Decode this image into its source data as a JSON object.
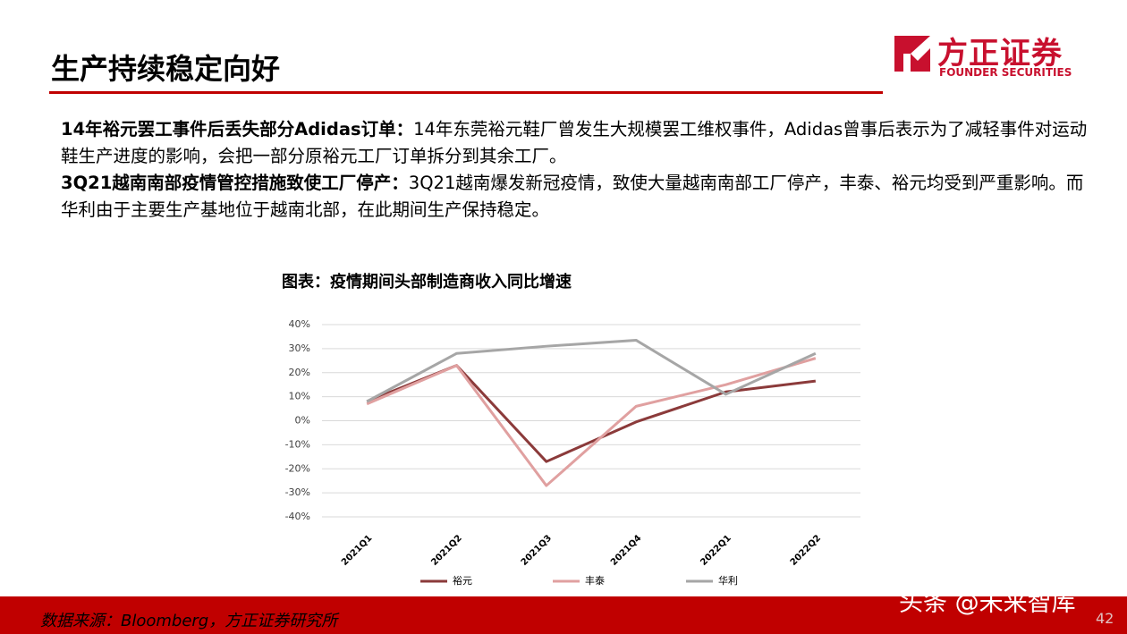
{
  "header": {
    "title": "生产持续稳定向好"
  },
  "logo": {
    "name": "方正证券",
    "subtitle": "FOUNDER SECURITIES"
  },
  "paragraphs": [
    {
      "lead": "14年裕元罢工事件后丢失部分Adidas订单：",
      "text": "14年东莞裕元鞋厂曾发生大规模罢工维权事件，Adidas曾事后表示为了减轻事件对运动鞋生产进度的影响，会把一部分原裕元工厂订单拆分到其余工厂。"
    },
    {
      "lead": "3Q21越南南部疫情管控措施致使工厂停产：",
      "text": "3Q21越南爆发新冠疫情，致使大量越南南部工厂停产，丰泰、裕元均受到严重影响。而华利由于主要生产基地位于越南北部，在此期间生产保持稳定。"
    }
  ],
  "chart_data": {
    "type": "line",
    "title": "图表：疫情期间头部制造商收入同比增速",
    "categories": [
      "2021Q1",
      "2021Q2",
      "2021Q3",
      "2021Q4",
      "2022Q1",
      "2022Q2"
    ],
    "series": [
      {
        "name": "裕元",
        "color": "#8b3a3a",
        "values": [
          8,
          23,
          -17,
          -0.5,
          12,
          16.5
        ]
      },
      {
        "name": "丰泰",
        "color": "#e0a0a0",
        "values": [
          7,
          23,
          -27,
          6,
          15,
          26
        ]
      },
      {
        "name": "华利",
        "color": "#a6a6a6",
        "values": [
          8,
          28,
          31,
          33.5,
          11,
          28
        ]
      }
    ],
    "ylim": [
      -40,
      40
    ],
    "yticks": [
      {
        "value": -40,
        "label": "-40%"
      },
      {
        "value": -30,
        "label": "-30%"
      },
      {
        "value": -20,
        "label": "-20%"
      },
      {
        "value": -10,
        "label": "-10%"
      },
      {
        "value": 0,
        "label": "0%"
      },
      {
        "value": 10,
        "label": "10%"
      },
      {
        "value": 20,
        "label": "20%"
      },
      {
        "value": 30,
        "label": "30%"
      },
      {
        "value": 40,
        "label": "40%"
      }
    ],
    "grid": true,
    "legend": "bottom"
  },
  "footer": {
    "source": "数据来源：Bloomberg，方正证券研究所",
    "watermark": "头条 @未来智库",
    "page_number": 42
  }
}
